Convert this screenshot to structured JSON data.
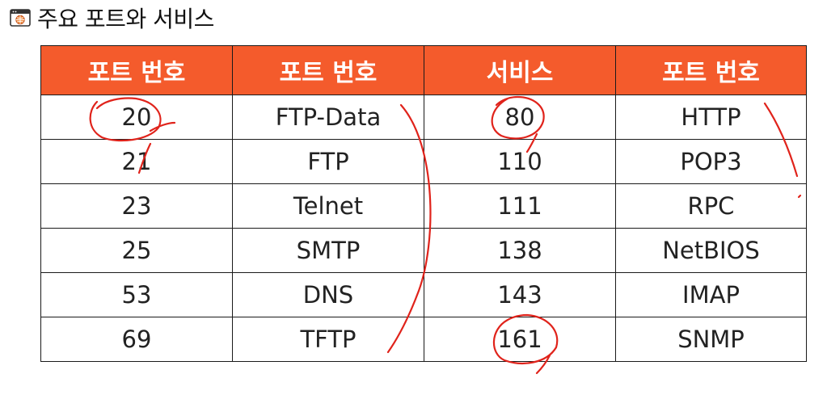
{
  "title": "주요 포트와 서비스",
  "icons": {
    "title_icon": "browser-window-globe-icon"
  },
  "colors": {
    "header_background": "#f45b2c",
    "header_text": "#ffffff",
    "annotation_ink": "#e0231b"
  },
  "table": {
    "headers": [
      "포트 번호",
      "포트 번호",
      "서비스",
      "포트 번호"
    ],
    "rows": [
      [
        "20",
        "FTP-Data",
        "80",
        "HTTP"
      ],
      [
        "21",
        "FTP",
        "110",
        "POP3"
      ],
      [
        "23",
        "Telnet",
        "111",
        "RPC"
      ],
      [
        "25",
        "SMTP",
        "138",
        "NetBIOS"
      ],
      [
        "53",
        "DNS",
        "143",
        "IMAP"
      ],
      [
        "69",
        "TFTP",
        "161",
        "SNMP"
      ]
    ]
  }
}
